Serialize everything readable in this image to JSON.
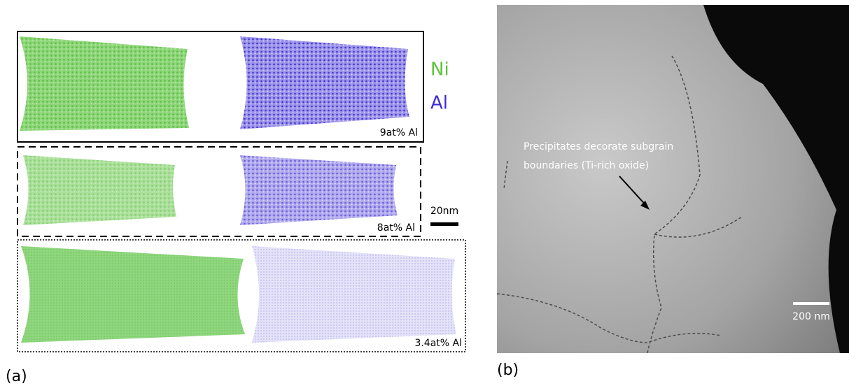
{
  "panel_a": {
    "label": "(a)",
    "legend": [
      "Ni",
      "Al"
    ],
    "scale_bar": "20nm",
    "samples": [
      "9at% Al",
      "8at% Al",
      "3.4at% Al"
    ]
  },
  "panel_b": {
    "label": "(b)",
    "annotation": [
      "Precipitates decorate subgrain",
      "boundaries (Ti-rich oxide)"
    ],
    "scale_bar": "200 nm"
  }
}
